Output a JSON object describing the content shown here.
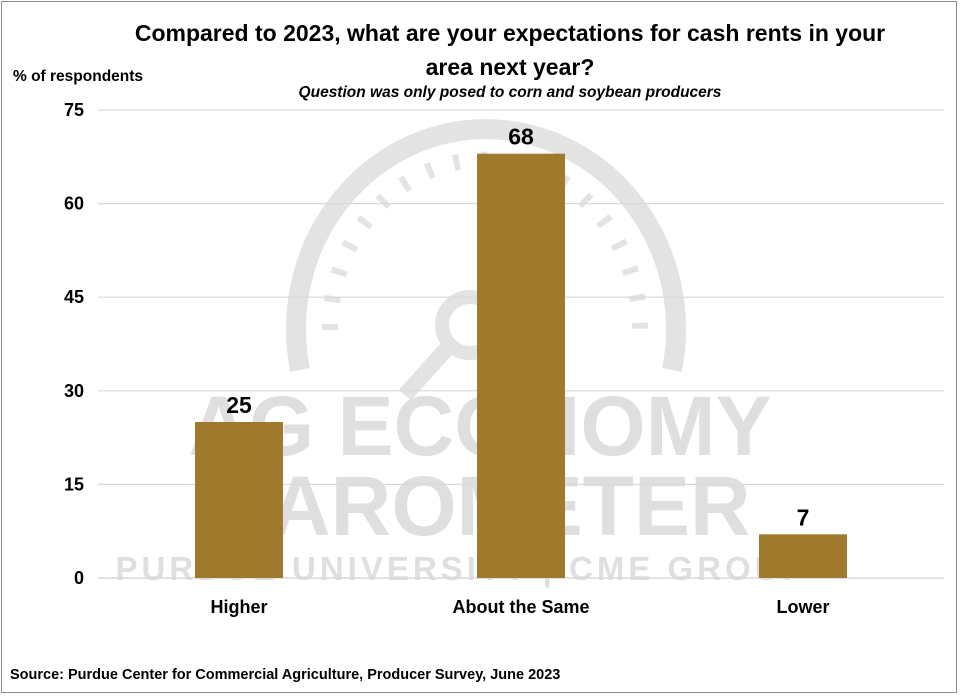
{
  "chart_data": {
    "type": "bar",
    "title": "Compared to 2023, what are your expectations for cash rents in your area next year?",
    "subtitle": "Question was only posed to corn and soybean producers",
    "ylabel": "% of respondents",
    "categories": [
      "Higher",
      "About the Same",
      "Lower"
    ],
    "values": [
      25,
      68,
      7
    ],
    "data_labels": [
      "25",
      "68",
      "7"
    ],
    "ylim": [
      0,
      75
    ],
    "yticks": [
      0,
      15,
      30,
      45,
      60,
      75
    ],
    "grid": true,
    "legend": "none",
    "bar_color": "#a07a2c",
    "grid_color": "#d9d9d9"
  },
  "watermark": {
    "line1": "AG ECONOMY",
    "line2": "BAROMETER",
    "line3": "PURDUE UNIVERSITY | CME GROUP"
  },
  "source": "Source: Purdue Center for Commercial Agriculture, Producer Survey, June 2023"
}
